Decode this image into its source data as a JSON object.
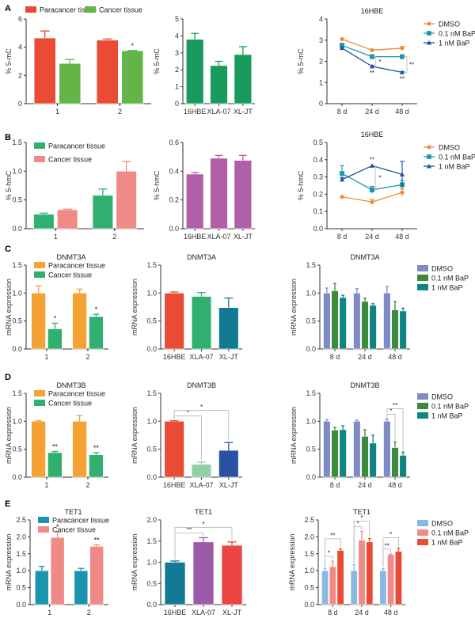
{
  "figure": {
    "panel_labels": [
      "A",
      "B",
      "C",
      "D",
      "E"
    ]
  },
  "chart_data": [
    {
      "id": "A1",
      "row": 0,
      "col": 0,
      "type": "bar",
      "title": "",
      "xlabel": "",
      "ylabel": "% 5-mC",
      "categories": [
        "1",
        "2"
      ],
      "yticks": [
        0,
        2,
        4,
        6
      ],
      "ylim": [
        0,
        6
      ],
      "series": [
        {
          "name": "Paracancer tissue",
          "color": "#e94b35",
          "values": [
            4.65,
            4.5
          ],
          "errors": [
            0.5,
            0.08
          ]
        },
        {
          "name": "Cancer tissue",
          "color": "#62b546",
          "values": [
            2.85,
            3.75
          ],
          "errors": [
            0.28,
            0.02
          ]
        }
      ],
      "annotations": [
        {
          "category": 1,
          "series": 1,
          "text": "*"
        }
      ],
      "legend": "top-row"
    },
    {
      "id": "A2",
      "row": 0,
      "col": 1,
      "type": "bar",
      "title": "",
      "xlabel": "",
      "ylabel": "% 5-mC",
      "categories": [
        "16HBE",
        "XLA-07",
        "XL-JT"
      ],
      "yticks": [
        0,
        1,
        2,
        3,
        4,
        5
      ],
      "ylim": [
        0,
        5
      ],
      "series": [
        {
          "name": "",
          "color": "#1a9b5e",
          "values": [
            3.8,
            2.25,
            2.9
          ],
          "errors": [
            0.35,
            0.25,
            0.47
          ]
        }
      ]
    },
    {
      "id": "A3",
      "row": 0,
      "col": 2,
      "type": "line",
      "title": "16HBE",
      "xlabel": "",
      "ylabel": "% 5-mC",
      "categories": [
        "8 d",
        "24 d",
        "48 d"
      ],
      "yticks": [
        0,
        1,
        2,
        3,
        4
      ],
      "ylim": [
        0,
        4
      ],
      "series": [
        {
          "name": "DMSO",
          "color": "#f28b30",
          "marker": "circle",
          "values": [
            3.05,
            2.53,
            2.62
          ],
          "errors": [
            0,
            0,
            0.08
          ]
        },
        {
          "name": "0.1 nM BaP",
          "color": "#1a95ad",
          "marker": "square",
          "values": [
            2.75,
            2.22,
            2.22
          ],
          "errors": [
            0.1,
            0.06,
            0.02
          ]
        },
        {
          "name": "1 nM BaP",
          "color": "#1f50a0",
          "marker": "triangle",
          "values": [
            2.63,
            1.76,
            1.48
          ],
          "errors": [
            0.05,
            0.04,
            0.03
          ]
        }
      ],
      "annotations": [
        {
          "category": 1,
          "text": "**",
          "position": "below-1nM"
        },
        {
          "category": 1,
          "text": "*",
          "position": "bracket-0.1-vs-1"
        },
        {
          "category": 2,
          "text": "**",
          "position": "below-1nM"
        },
        {
          "category": 2,
          "text": "**",
          "position": "bracket-0.1-vs-1"
        }
      ],
      "legend": "right"
    },
    {
      "id": "B1",
      "row": 1,
      "col": 0,
      "type": "bar",
      "title": "",
      "xlabel": "",
      "ylabel": "% 5-hmC",
      "categories": [
        "1",
        "2"
      ],
      "yticks": [
        0.0,
        0.5,
        1.0,
        1.5
      ],
      "ytick_labels": [
        "0.0",
        "0.5",
        "1.0",
        "1.5"
      ],
      "ylim": [
        0,
        1.5
      ],
      "series": [
        {
          "name": "Paracancer tissue",
          "color": "#2fb06e",
          "values": [
            0.25,
            0.58
          ],
          "errors": [
            0.02,
            0.11
          ]
        },
        {
          "name": "Cancer tissue",
          "color": "#f08a86",
          "values": [
            0.33,
            1.0
          ],
          "errors": [
            0.01,
            0.17
          ]
        }
      ],
      "legend": "top-left-inside"
    },
    {
      "id": "B2",
      "row": 1,
      "col": 1,
      "type": "bar",
      "title": "",
      "xlabel": "",
      "ylabel": "% 5-hmC",
      "categories": [
        "16HBE",
        "XLA-07",
        "XL-JT"
      ],
      "yticks": [
        0.0,
        0.2,
        0.4,
        0.6
      ],
      "ytick_labels": [
        "0.0",
        "0.2",
        "0.4",
        "0.6"
      ],
      "ylim": [
        0,
        0.6
      ],
      "series": [
        {
          "name": "",
          "color": "#b05fa8",
          "values": [
            0.38,
            0.49,
            0.475
          ],
          "errors": [
            0.01,
            0.02,
            0.035
          ]
        }
      ]
    },
    {
      "id": "B3",
      "row": 1,
      "col": 2,
      "type": "line",
      "title": "16HBE",
      "xlabel": "",
      "ylabel": "% 5-hmC",
      "categories": [
        "8 d",
        "24 d",
        "48 d"
      ],
      "yticks": [
        0.0,
        0.1,
        0.2,
        0.3,
        0.4,
        0.5
      ],
      "ytick_labels": [
        "0.0",
        "0.1",
        "0.2",
        "0.3",
        "0.4",
        "0.5"
      ],
      "ylim": [
        0,
        0.5
      ],
      "series": [
        {
          "name": "DMSO",
          "color": "#f28b30",
          "marker": "circle",
          "values": [
            0.185,
            0.155,
            0.21
          ],
          "errors": [
            0,
            0.015,
            0.02
          ]
        },
        {
          "name": "0.1 nM BaP",
          "color": "#1a95ad",
          "marker": "square",
          "values": [
            0.32,
            0.225,
            0.255
          ],
          "errors": [
            0.045,
            0.02,
            0.025
          ]
        },
        {
          "name": "1 nM BaP",
          "color": "#1f50a0",
          "marker": "triangle",
          "values": [
            0.285,
            0.365,
            0.315
          ],
          "errors": [
            0.01,
            0.0,
            0.075
          ]
        }
      ],
      "annotations": [
        {
          "category": 1,
          "text": "**",
          "position": "above-1nM"
        },
        {
          "category": 1,
          "text": "*",
          "position": "bracket-0.1-vs-1"
        }
      ],
      "legend": "right"
    },
    {
      "id": "C1",
      "row": 2,
      "col": 0,
      "type": "bar",
      "title": "DNMT3A",
      "xlabel": "",
      "ylabel": "mRNA expression",
      "categories": [
        "1",
        "2"
      ],
      "yticks": [
        0.0,
        0.5,
        1.0,
        1.5
      ],
      "ytick_labels": [
        "0.0",
        "0.5",
        "1.0",
        "1.5"
      ],
      "ylim": [
        0,
        1.5
      ],
      "series": [
        {
          "name": "Paracancer tissue",
          "color": "#f4a233",
          "values": [
            1.0,
            1.0
          ],
          "errors": [
            0.13,
            0.07
          ]
        },
        {
          "name": "Cancer tissue",
          "color": "#2fb06e",
          "values": [
            0.36,
            0.58
          ],
          "errors": [
            0.1,
            0.04
          ]
        }
      ],
      "annotations": [
        {
          "category": 0,
          "series": 1,
          "text": "*"
        },
        {
          "category": 1,
          "series": 1,
          "text": "*"
        }
      ],
      "legend": "top-left-inside"
    },
    {
      "id": "C2",
      "row": 2,
      "col": 1,
      "type": "bar",
      "title": "DNMT3A",
      "xlabel": "",
      "ylabel": "mRNA expression",
      "categories": [
        "16HBE",
        "XLA-07",
        "XL-JT"
      ],
      "yticks": [
        0.0,
        0.5,
        1.0,
        1.5
      ],
      "ytick_labels": [
        "0.0",
        "0.5",
        "1.0",
        "1.5"
      ],
      "ylim": [
        0,
        1.5
      ],
      "series": [
        {
          "name": "",
          "colors": [
            "#e94b35",
            "#2fb06e",
            "#137a94"
          ],
          "values": [
            1.0,
            0.94,
            0.74
          ],
          "errors": [
            0.02,
            0.07,
            0.17
          ]
        }
      ]
    },
    {
      "id": "C3",
      "row": 2,
      "col": 2,
      "type": "bar",
      "title": "DNMT3A",
      "xlabel": "",
      "ylabel": "mRNA expression",
      "categories": [
        "8 d",
        "24 d",
        "48 d"
      ],
      "yticks": [
        0.0,
        0.5,
        1.0,
        1.5
      ],
      "ytick_labels": [
        "0.0",
        "0.5",
        "1.0",
        "1.5"
      ],
      "ylim": [
        0,
        1.5
      ],
      "series": [
        {
          "name": "DMSO",
          "color": "#7f8bc6",
          "values": [
            1.0,
            1.0,
            1.0
          ],
          "errors": [
            0.09,
            0.08,
            0.12
          ]
        },
        {
          "name": "0.1 nM BaP",
          "color": "#3e8a3c",
          "values": [
            1.04,
            0.85,
            0.7
          ],
          "errors": [
            0.13,
            0.06,
            0.15
          ]
        },
        {
          "name": "1 nM BaP",
          "color": "#0f8580",
          "values": [
            0.92,
            0.78,
            0.68
          ],
          "errors": [
            0.04,
            0.03,
            0.05
          ]
        }
      ],
      "legend": "right"
    },
    {
      "id": "D1",
      "row": 3,
      "col": 0,
      "type": "bar",
      "title": "DNMT3B",
      "xlabel": "",
      "ylabel": "mRNA expression",
      "categories": [
        "1",
        "2"
      ],
      "yticks": [
        0.0,
        0.5,
        1.0,
        1.5
      ],
      "ytick_labels": [
        "0.0",
        "0.5",
        "1.0",
        "1.5"
      ],
      "ylim": [
        0,
        1.5
      ],
      "series": [
        {
          "name": "Paracancer tissue",
          "color": "#f4a233",
          "values": [
            1.0,
            1.0
          ],
          "errors": [
            0.01,
            0.1
          ]
        },
        {
          "name": "Cancer tissue",
          "color": "#2fb06e",
          "values": [
            0.44,
            0.4
          ],
          "errors": [
            0.02,
            0.04
          ]
        }
      ],
      "annotations": [
        {
          "category": 0,
          "series": 1,
          "text": "**"
        },
        {
          "category": 1,
          "series": 1,
          "text": "**"
        }
      ],
      "legend": "top-left-inside"
    },
    {
      "id": "D2",
      "row": 3,
      "col": 1,
      "type": "bar",
      "title": "DNMT3B",
      "xlabel": "",
      "ylabel": "mRNA expression",
      "categories": [
        "16HBE",
        "XLA-07",
        "XL-JT"
      ],
      "yticks": [
        0.0,
        0.5,
        1.0,
        1.5
      ],
      "ytick_labels": [
        "0.0",
        "0.5",
        "1.0",
        "1.5"
      ],
      "ylim": [
        0,
        1.5
      ],
      "series": [
        {
          "name": "",
          "colors": [
            "#e94b35",
            "#8fd0a8",
            "#2a52a3"
          ],
          "values": [
            1.0,
            0.23,
            0.48
          ],
          "errors": [
            0.01,
            0.04,
            0.14
          ]
        }
      ],
      "brackets": [
        {
          "from": 0,
          "to": 1,
          "text": "*",
          "level": 0
        },
        {
          "from": 0,
          "to": 2,
          "text": "*",
          "level": 1
        }
      ]
    },
    {
      "id": "D3",
      "row": 3,
      "col": 2,
      "type": "bar",
      "title": "DNMT3B",
      "xlabel": "",
      "ylabel": "mRNA expression",
      "categories": [
        "8 d",
        "24 d",
        "48 d"
      ],
      "yticks": [
        0.0,
        0.5,
        1.0,
        1.5
      ],
      "ytick_labels": [
        "0.0",
        "0.5",
        "1.0",
        "1.5"
      ],
      "ylim": [
        0,
        1.5
      ],
      "series": [
        {
          "name": "DMSO",
          "color": "#7f8bc6",
          "values": [
            1.0,
            1.0,
            1.0
          ],
          "errors": [
            0.03,
            0.02,
            0.04
          ]
        },
        {
          "name": "0.1 nM BaP",
          "color": "#3e8a3c",
          "values": [
            0.84,
            0.73,
            0.53
          ],
          "errors": [
            0.05,
            0.12,
            0.1
          ]
        },
        {
          "name": "1 nM BaP",
          "color": "#0f8580",
          "values": [
            0.85,
            0.61,
            0.39
          ],
          "errors": [
            0.07,
            0.14,
            0.06
          ]
        }
      ],
      "brackets": [
        {
          "group": 2,
          "from": 0,
          "to": 1,
          "text": "*",
          "level": 0
        },
        {
          "group": 2,
          "from": 0,
          "to": 2,
          "text": "**",
          "level": 1
        }
      ],
      "legend": "right"
    },
    {
      "id": "E1",
      "row": 4,
      "col": 0,
      "type": "bar",
      "title": "TET1",
      "xlabel": "",
      "ylabel": "mRNA expression",
      "categories": [
        "1",
        "2"
      ],
      "yticks": [
        0.0,
        0.5,
        1.0,
        1.5,
        2.0,
        2.5
      ],
      "ytick_labels": [
        "0.0",
        "0.5",
        "1.0",
        "1.5",
        "2.0",
        "2.5"
      ],
      "ylim": [
        0,
        2.5
      ],
      "series": [
        {
          "name": "Paracancer tissue",
          "color": "#1a95ad",
          "values": [
            1.0,
            1.0
          ],
          "errors": [
            0.13,
            0.07
          ]
        },
        {
          "name": "Cancer tissue",
          "color": "#f08a86",
          "values": [
            1.98,
            1.72
          ],
          "errors": [
            0.17,
            0.04
          ]
        }
      ],
      "annotations": [
        {
          "category": 0,
          "series": 1,
          "text": "*"
        },
        {
          "category": 1,
          "series": 1,
          "text": "**"
        }
      ],
      "legend": "top-left-inside"
    },
    {
      "id": "E2",
      "row": 4,
      "col": 1,
      "type": "bar",
      "title": "TET1",
      "xlabel": "",
      "ylabel": "mRNA expression",
      "categories": [
        "16HBE",
        "XLA-07",
        "XL-JT"
      ],
      "yticks": [
        0.0,
        0.5,
        1.0,
        1.5,
        2.0
      ],
      "ytick_labels": [
        "0.0",
        "0.5",
        "1.0",
        "1.5",
        "2.0"
      ],
      "ylim": [
        0,
        2.0
      ],
      "series": [
        {
          "name": "",
          "colors": [
            "#137a94",
            "#9b5ba8",
            "#ec4343"
          ],
          "values": [
            1.0,
            1.48,
            1.4
          ],
          "errors": [
            0.03,
            0.1,
            0.08
          ]
        }
      ],
      "brackets": [
        {
          "from": 0,
          "to": 1,
          "text": "**",
          "level": 0
        },
        {
          "from": 0,
          "to": 2,
          "text": "*",
          "level": 1
        }
      ]
    },
    {
      "id": "E3",
      "row": 4,
      "col": 2,
      "type": "bar",
      "title": "TET1",
      "xlabel": "",
      "ylabel": "mRNA expression",
      "categories": [
        "8 d",
        "24 d",
        "48 d"
      ],
      "yticks": [
        0.0,
        0.5,
        1.0,
        1.5,
        2.0,
        2.5
      ],
      "ytick_labels": [
        "0.0",
        "0.5",
        "1.0",
        "1.5",
        "2.0",
        "2.5"
      ],
      "ylim": [
        0,
        2.5
      ],
      "series": [
        {
          "name": "DMSO",
          "color": "#8ab8e0",
          "values": [
            1.0,
            1.0,
            1.0
          ],
          "errors": [
            0.07,
            0.18,
            0.06
          ]
        },
        {
          "name": "0.1 nM BaP",
          "color": "#f08a86",
          "values": [
            1.12,
            1.9,
            1.48
          ],
          "errors": [
            0.16,
            0.26,
            0.02
          ]
        },
        {
          "name": "1 nM BaP",
          "color": "#e94b35",
          "values": [
            1.6,
            1.85,
            1.57
          ],
          "errors": [
            0.04,
            0.1,
            0.1
          ]
        }
      ],
      "brackets": [
        {
          "group": 0,
          "from": 0,
          "to": 1,
          "text": "*",
          "level": 0
        },
        {
          "group": 0,
          "from": 0,
          "to": 2,
          "text": "**",
          "level": 1
        },
        {
          "group": 1,
          "from": 0,
          "to": 1,
          "text": "*",
          "level": 0
        },
        {
          "group": 1,
          "from": 0,
          "to": 2,
          "text": "*",
          "level": 1
        },
        {
          "group": 2,
          "from": 0,
          "to": 1,
          "text": "**",
          "level": 0
        },
        {
          "group": 2,
          "from": 0,
          "to": 2,
          "text": "*",
          "level": 1
        }
      ],
      "legend": "right"
    }
  ]
}
